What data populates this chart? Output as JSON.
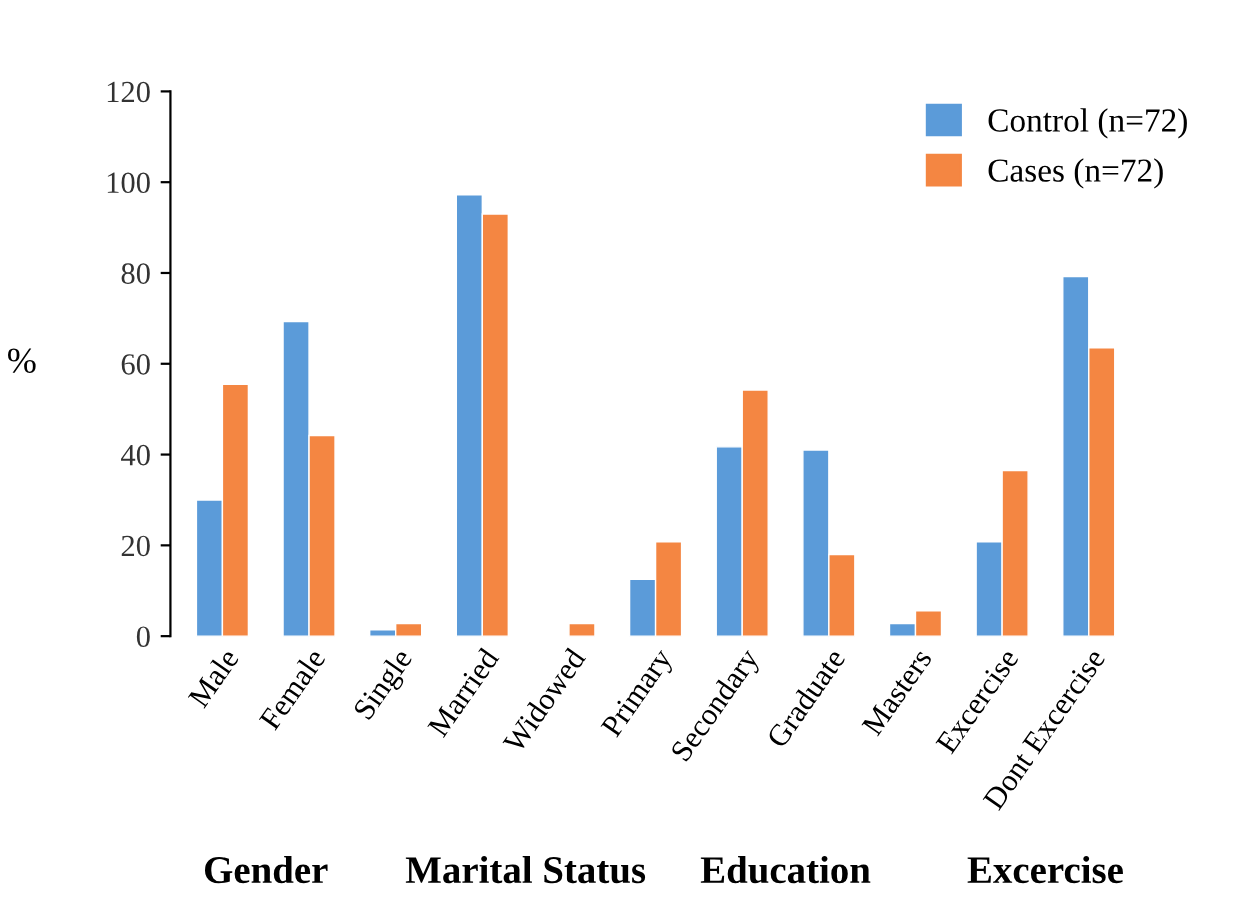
{
  "chart_data": {
    "type": "bar",
    "ylabel": "%",
    "categories": [
      "Male",
      "Female",
      "Single",
      "Married",
      "Widowed",
      "Primary",
      "Secondary",
      "Graduate",
      "Masters",
      "Excercise",
      "Dont Excercise"
    ],
    "series": [
      {
        "name": "Control (n=72)",
        "color": "#5b9bd9",
        "values": [
          30,
          69.3,
          1.4,
          97.2,
          null,
          12.5,
          41.7,
          41,
          2.8,
          20.8,
          79.2
        ]
      },
      {
        "name": "Cases (n=72)",
        "color": "#f48642",
        "values": [
          55.5,
          44.2,
          2.8,
          93,
          2.8,
          20.8,
          54.2,
          18,
          5.6,
          36.5,
          63.5
        ]
      }
    ],
    "ylim": [
      0,
      120
    ],
    "yticks": [
      0,
      20,
      40,
      60,
      80,
      100,
      120
    ],
    "grid": false,
    "legend": "top right",
    "annotations": [
      "Gender",
      "Marital Status",
      "Education",
      "Excercise"
    ]
  }
}
